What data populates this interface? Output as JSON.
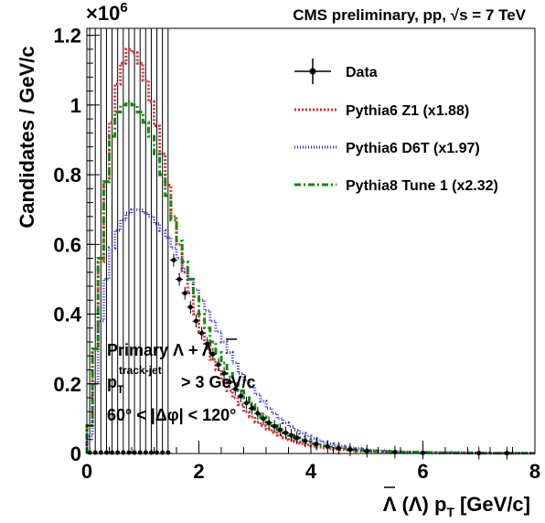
{
  "header": {
    "title": "CMS preliminary, pp, √s = 7 TeV",
    "multiplier_base": "×10",
    "multiplier_exp": "6"
  },
  "axes": {
    "xlabel_main": "Λ (Λ) p",
    "xlabel_sub": "T",
    "xlabel_unit": "[GeV/c]",
    "ylabel": "Candidates / GeV/c"
  },
  "annotations": {
    "line1": "Primary Λ + Λ",
    "line2_main": "p",
    "line2_sub": "T",
    "line2_sup": "track-jet",
    "line2_rest": "> 3 GeV/c",
    "line3": "60° < |Δφ| < 120°"
  },
  "legend": [
    {
      "label": "Data",
      "color": "#000000"
    },
    {
      "label": "Pythia6 Z1 (x1.88)",
      "color": "#d23232"
    },
    {
      "label": "Pythia6 D6T (x1.97)",
      "color": "#2828c8"
    },
    {
      "label": "Pythia8 Tune 1 (x2.32)",
      "color": "#0e8a0e"
    }
  ],
  "chart_data": {
    "type": "line",
    "xlim": [
      0,
      8
    ],
    "ylim": [
      0,
      1.22
    ],
    "y_multiplier": "×10^6",
    "xticks": [
      0,
      2,
      4,
      6,
      8
    ],
    "yticks": [
      0,
      0.2,
      0.4,
      0.6,
      0.8,
      1,
      1.2
    ],
    "xtick_labels": [
      "0",
      "2",
      "4",
      "6",
      "8"
    ],
    "ytick_labels": [
      "0",
      "0.2",
      "0.4",
      "0.6",
      "0.8",
      "1",
      "1.2"
    ],
    "bin_width": 0.1,
    "series": [
      {
        "name": "Pythia6 Z1 (x1.88)",
        "style": "step",
        "color": "#d23232",
        "values": [
          0.08,
          0.3,
          0.55,
          0.78,
          0.95,
          1.06,
          1.12,
          1.16,
          1.15,
          1.12,
          1.07,
          1.01,
          0.94,
          0.86,
          0.77,
          0.68,
          0.6,
          0.52,
          0.46,
          0.4,
          0.35,
          0.31,
          0.27,
          0.24,
          0.21,
          0.18,
          0.16,
          0.14,
          0.12,
          0.105,
          0.09,
          0.08,
          0.07,
          0.06,
          0.052,
          0.045,
          0.039,
          0.034,
          0.029,
          0.025,
          0.021,
          0.018,
          0.016,
          0.014,
          0.012,
          0.011,
          0.01,
          0.009,
          0.008,
          0.007,
          0.006,
          0.006,
          0.005,
          0.005,
          0.004,
          0.004,
          0.004,
          0.003,
          0.003,
          0.003,
          0.003,
          0.002,
          0.002,
          0.002,
          0.002,
          0.002,
          0.002,
          0.002,
          0.001,
          0.001,
          0.001,
          0.001,
          0.001,
          0.001,
          0.001,
          0.001,
          0.001,
          0.001,
          0.001,
          0.001
        ]
      },
      {
        "name": "Pythia6 D6T (x1.97)",
        "style": "step",
        "color": "#2828c8",
        "values": [
          0.05,
          0.2,
          0.38,
          0.5,
          0.59,
          0.64,
          0.67,
          0.69,
          0.7,
          0.7,
          0.69,
          0.68,
          0.66,
          0.64,
          0.62,
          0.59,
          0.56,
          0.53,
          0.5,
          0.47,
          0.44,
          0.41,
          0.38,
          0.35,
          0.32,
          0.29,
          0.26,
          0.23,
          0.21,
          0.19,
          0.17,
          0.15,
          0.13,
          0.115,
          0.1,
          0.088,
          0.077,
          0.067,
          0.058,
          0.05,
          0.043,
          0.037,
          0.032,
          0.028,
          0.024,
          0.021,
          0.018,
          0.016,
          0.014,
          0.012,
          0.01,
          0.009,
          0.008,
          0.007,
          0.006,
          0.006,
          0.005,
          0.005,
          0.004,
          0.004,
          0.004,
          0.003,
          0.003,
          0.003,
          0.003,
          0.002,
          0.002,
          0.002,
          0.002,
          0.002,
          0.002,
          0.002,
          0.001,
          0.001,
          0.001,
          0.001,
          0.001,
          0.001,
          0.001,
          0.001
        ]
      },
      {
        "name": "Pythia8 Tune 1 (x2.32)",
        "style": "step",
        "color": "#0e8a0e",
        "values": [
          0.08,
          0.3,
          0.56,
          0.78,
          0.91,
          0.98,
          1.0,
          1.01,
          1.0,
          0.98,
          0.95,
          0.91,
          0.86,
          0.8,
          0.74,
          0.67,
          0.61,
          0.55,
          0.5,
          0.45,
          0.4,
          0.36,
          0.32,
          0.29,
          0.26,
          0.23,
          0.2,
          0.18,
          0.16,
          0.14,
          0.12,
          0.105,
          0.09,
          0.08,
          0.07,
          0.06,
          0.052,
          0.045,
          0.039,
          0.034,
          0.029,
          0.025,
          0.022,
          0.019,
          0.016,
          0.014,
          0.012,
          0.011,
          0.01,
          0.009,
          0.008,
          0.007,
          0.006,
          0.006,
          0.005,
          0.005,
          0.004,
          0.004,
          0.004,
          0.003,
          0.003,
          0.003,
          0.003,
          0.002,
          0.002,
          0.002,
          0.002,
          0.002,
          0.002,
          0.002,
          0.001,
          0.001,
          0.001,
          0.001,
          0.001,
          0.001,
          0.001,
          0.001,
          0.001,
          0.001
        ]
      },
      {
        "name": "Data",
        "style": "points",
        "color": "#000000",
        "low_region_x": [
          0.05,
          0.15,
          0.25,
          0.35,
          0.45,
          0.55,
          0.65,
          0.75,
          0.85,
          0.95,
          1.05,
          1.15,
          1.25,
          1.35,
          1.45
        ],
        "x": [
          1.55,
          1.65,
          1.75,
          1.85,
          1.95,
          2.05,
          2.15,
          2.25,
          2.35,
          2.45,
          2.55,
          2.65,
          2.75,
          2.85,
          2.95,
          3.05,
          3.15,
          3.25,
          3.35,
          3.45,
          3.55,
          3.65,
          3.75,
          3.9,
          4.1,
          4.3,
          4.5,
          4.7,
          5.0,
          5.5,
          6.0,
          7.0,
          7.5
        ],
        "y": [
          0.555,
          0.5,
          0.46,
          0.42,
          0.38,
          0.345,
          0.315,
          0.285,
          0.255,
          0.23,
          0.205,
          0.185,
          0.165,
          0.145,
          0.13,
          0.115,
          0.1,
          0.088,
          0.078,
          0.068,
          0.059,
          0.052,
          0.045,
          0.036,
          0.027,
          0.02,
          0.015,
          0.011,
          0.007,
          0.004,
          0.002,
          0.001,
          0.001
        ]
      }
    ]
  }
}
